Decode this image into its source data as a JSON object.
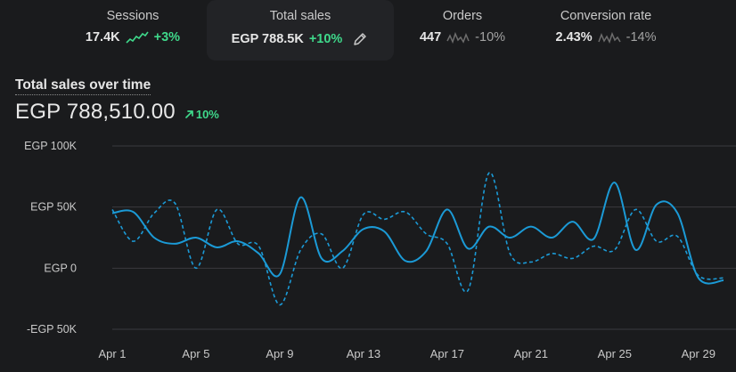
{
  "metrics": [
    {
      "label": "Sessions",
      "value": "17.4K",
      "delta": "+3%",
      "trend": "up",
      "spark_icon": "sparkline-up-icon"
    },
    {
      "label": "Total sales",
      "value": "EGP 788.5K",
      "delta": "+10%",
      "trend": "up",
      "edit_icon": "pencil-icon"
    },
    {
      "label": "Orders",
      "value": "447",
      "delta": "-10%",
      "trend": "down",
      "spark_icon": "sparkline-icon"
    },
    {
      "label": "Conversion rate",
      "value": "2.43%",
      "delta": "-14%",
      "trend": "down",
      "spark_icon": "sparkline-icon"
    }
  ],
  "chart_header": {
    "title": "Total sales over time",
    "total": "EGP 788,510.00",
    "delta": "10%",
    "delta_icon": "arrow-up-right-icon"
  },
  "colors": {
    "background": "#1a1b1d",
    "current_series": "#1b9ad6",
    "comparison_series": "#1b9ad6",
    "positive": "#3fd98b",
    "gridline": "#3a3b3e"
  },
  "chart_data": {
    "type": "line",
    "title": "Total sales over time",
    "y_ticks": [
      "EGP 100K",
      "EGP 50K",
      "EGP 0",
      "-EGP 50K"
    ],
    "y_tick_values": [
      100000,
      50000,
      0,
      -50000
    ],
    "ylim": [
      -50000,
      100000
    ],
    "x_tick_labels": [
      "Apr 1",
      "Apr 5",
      "Apr 9",
      "Apr 13",
      "Apr 17",
      "Apr 21",
      "Apr 25",
      "Apr 29"
    ],
    "x_tick_days": [
      1,
      5,
      9,
      13,
      17,
      21,
      25,
      29
    ],
    "x": [
      1,
      2,
      3,
      4,
      5,
      6,
      7,
      8,
      9,
      10,
      11,
      12,
      13,
      14,
      15,
      16,
      17,
      18,
      19,
      20,
      21,
      22,
      23,
      24,
      25,
      26,
      27,
      28,
      29,
      30
    ],
    "grid": true,
    "series": [
      {
        "style": "solid",
        "values": [
          45000,
          46000,
          25000,
          20000,
          25000,
          17000,
          22000,
          12000,
          -5000,
          58000,
          8000,
          14000,
          32000,
          30000,
          6000,
          14000,
          48000,
          16000,
          34000,
          25000,
          34000,
          25000,
          38000,
          24000,
          70000,
          15000,
          52000,
          45000,
          -8000,
          null
        ]
      },
      {
        "style": "dashed",
        "values": [
          48000,
          22000,
          45000,
          53000,
          0,
          48000,
          20000,
          18000,
          -30000,
          15000,
          28000,
          0,
          44000,
          40000,
          46000,
          28000,
          20000,
          -18000,
          78000,
          12000,
          5000,
          12000,
          8000,
          18000,
          15000,
          48000,
          22000,
          26000,
          -6000,
          null
        ]
      }
    ]
  }
}
